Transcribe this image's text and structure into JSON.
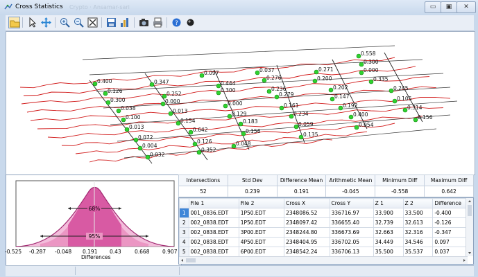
{
  "window": {
    "title": "Cross Statistics",
    "title_ghost": "Crypto · Ansamar-sari",
    "minimize_glyph": "▭",
    "maximize_glyph": "▣",
    "close_glyph": "✕"
  },
  "toolbar": {
    "icons": [
      "open-folder-icon",
      "select-arrow-icon",
      "pan-icon",
      "zoom-in-icon",
      "zoom-out-icon",
      "zoom-extents-icon",
      "save-icon",
      "chart-icon",
      "camera-icon",
      "print-icon",
      "help-icon",
      "info-icon"
    ]
  },
  "view3d": {
    "labels": [
      {
        "t": "0.558"
      },
      {
        "t": "0.300"
      },
      {
        "t": "0.000"
      },
      {
        "t": "0.335"
      },
      {
        "t": "0.245"
      },
      {
        "t": "0.105"
      },
      {
        "t": "0.314"
      },
      {
        "t": "0.156"
      },
      {
        "t": "0.271"
      },
      {
        "t": "0.200"
      },
      {
        "t": "0.202"
      },
      {
        "t": "0.147"
      },
      {
        "t": "0.192"
      },
      {
        "t": "0.400"
      },
      {
        "t": "0.054"
      },
      {
        "t": "0.037"
      },
      {
        "t": "0.276"
      },
      {
        "t": "0.236"
      },
      {
        "t": "0.279"
      },
      {
        "t": "0.161"
      },
      {
        "t": "0.234"
      },
      {
        "t": "0.059"
      },
      {
        "t": "0.135"
      },
      {
        "t": "0.097"
      },
      {
        "t": "0.444"
      },
      {
        "t": "0.300"
      },
      {
        "t": "0.000"
      },
      {
        "t": "0.129"
      },
      {
        "t": "0.183"
      },
      {
        "t": "0.156"
      },
      {
        "t": "0.048"
      },
      {
        "t": "0.347"
      },
      {
        "t": "0.252"
      },
      {
        "t": "0.000"
      },
      {
        "t": "0.013"
      },
      {
        "t": "0.154"
      },
      {
        "t": "0.642"
      },
      {
        "t": "0.126"
      },
      {
        "t": "0.352"
      },
      {
        "t": "0.400"
      },
      {
        "t": "0.126"
      },
      {
        "t": "0.300"
      },
      {
        "t": "0.038"
      },
      {
        "t": "0.100"
      },
      {
        "t": "0.013"
      },
      {
        "t": "0.072"
      },
      {
        "t": "0.004"
      },
      {
        "t": "0.032"
      }
    ]
  },
  "histogram": {
    "x_ticks": [
      "-0.525",
      "-0.287",
      "-0.048",
      "0.191",
      "0.43",
      "0.668",
      "0.907"
    ],
    "xlabel": "Differences",
    "band68": "68%",
    "band95": "95%"
  },
  "stats": {
    "headers": [
      "Intersections",
      "Std Dev",
      "Difference Mean",
      "Arithmetic Mean",
      "Minimum Diff",
      "Maximum Diff"
    ],
    "values": [
      "52",
      "0.239",
      "0.191",
      "-0.045",
      "-0.558",
      "0.642"
    ]
  },
  "grid": {
    "headers": [
      "",
      "File 1",
      "File 2",
      "Cross X",
      "Cross Y",
      "Z 1",
      "Z 2",
      "Difference"
    ],
    "rows": [
      [
        "1",
        "001_0836.EDT",
        "1P50.EDT",
        "2348086.52",
        "336716.97",
        "33.900",
        "33.500",
        "-0.400"
      ],
      [
        "2",
        "002_0838.EDT",
        "1P50.EDT",
        "2348097.42",
        "336655.40",
        "32.739",
        "32.613",
        "-0.126"
      ],
      [
        "3",
        "002_0838.EDT",
        "3P00.EDT",
        "2348244.80",
        "336673.69",
        "32.663",
        "32.316",
        "-0.347"
      ],
      [
        "4",
        "002_0838.EDT",
        "4P50.EDT",
        "2348404.95",
        "336702.05",
        "34.449",
        "34.546",
        "0.097"
      ],
      [
        "5",
        "002_0838.EDT",
        "6P00.EDT",
        "2348542.24",
        "336706.13",
        "35.500",
        "35.537",
        "0.037"
      ]
    ]
  },
  "colors": {
    "point": "#2fd12f",
    "flight": "#d11a1a",
    "pink": "#e878b4"
  }
}
